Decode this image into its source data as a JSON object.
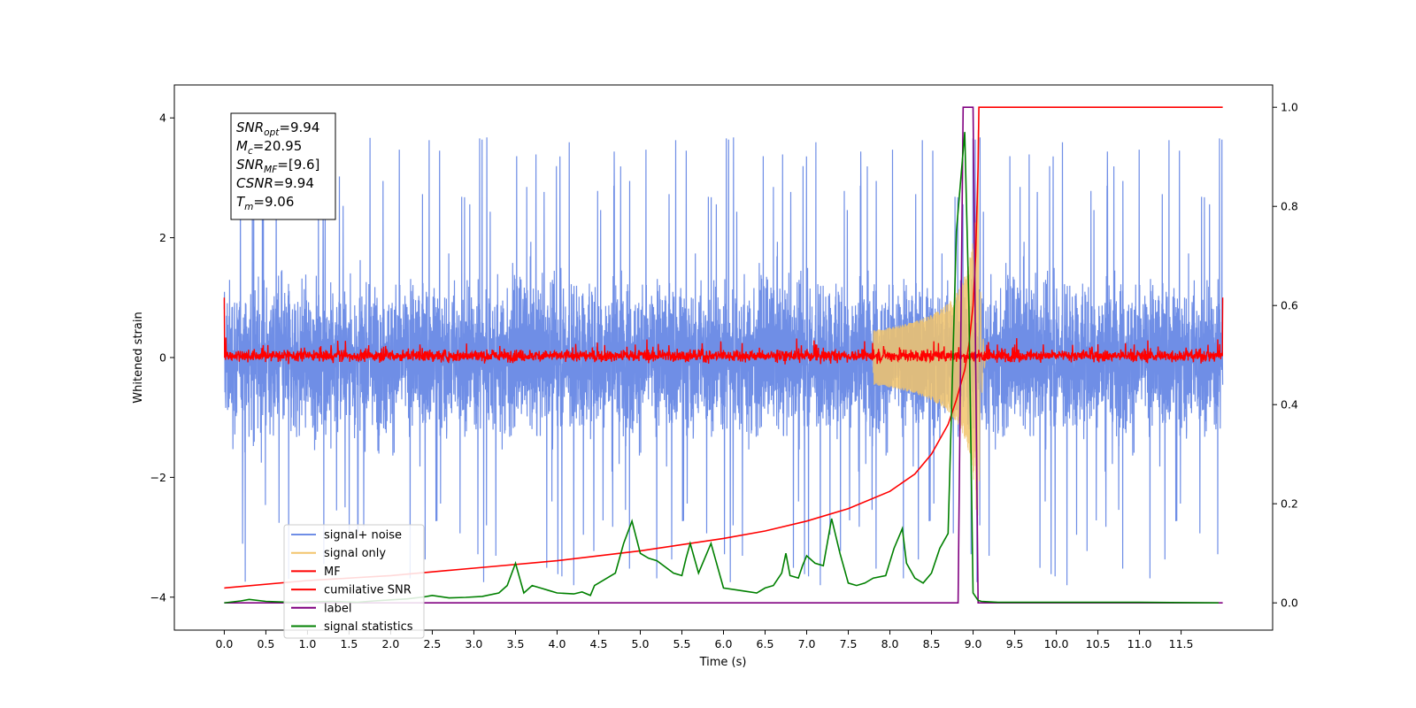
{
  "chart_data": {
    "type": "line",
    "xlabel": "Time (s)",
    "ylabel": "Whitened strain",
    "xlim": [
      -0.6,
      12.6
    ],
    "ylim_left": [
      -4.55,
      4.55
    ],
    "ylim_right": [
      -0.055,
      1.045
    ],
    "x_ticks": [
      0.0,
      0.5,
      1.0,
      1.5,
      2.0,
      2.5,
      3.0,
      3.5,
      4.0,
      4.5,
      5.0,
      5.5,
      6.0,
      6.5,
      7.0,
      7.5,
      8.0,
      8.5,
      9.0,
      9.5,
      10.0,
      10.5,
      11.0,
      11.5
    ],
    "x_tick_labels": [
      "0.0",
      "0.5",
      "1.0",
      "1.5",
      "2.0",
      "2.5",
      "3.0",
      "3.5",
      "4.0",
      "4.5",
      "5.0",
      "5.5",
      "6.0",
      "6.5",
      "7.0",
      "7.5",
      "8.0",
      "8.5",
      "9.0",
      "9.5",
      "10.0",
      "10.5",
      "11.0",
      "11.5"
    ],
    "y_left_ticks": [
      4,
      2,
      0,
      -2,
      -4
    ],
    "y_left_tick_labels": [
      "4",
      "2",
      "0",
      "−2",
      "−4"
    ],
    "y_right_ticks": [
      1.0,
      0.8,
      0.6,
      0.4,
      0.2,
      0.0
    ],
    "y_right_tick_labels": [
      "1.0",
      "0.8",
      "0.6",
      "0.4",
      "0.2",
      "0.0"
    ],
    "grid": false,
    "legend_placement": "lower-left",
    "annotation": {
      "lines": [
        {
          "var": "SNR",
          "sub": "opt",
          "value": "=9.94"
        },
        {
          "var": "M",
          "sub": "c",
          "value": "=20.95"
        },
        {
          "var": "SNR",
          "sub": "MF",
          "value": "=[9.6]"
        },
        {
          "var": "CSNR",
          "sub": "",
          "value": "=9.94"
        },
        {
          "var": "T",
          "sub": "m",
          "value": "=9.06"
        }
      ]
    },
    "series": [
      {
        "name": "signal+ noise",
        "axis": "left",
        "color": "#6f8ee6",
        "kind": "noise",
        "noise_band": [
          -2.2,
          2.2
        ],
        "spike_range": [
          -3.9,
          4.15
        ],
        "x_range": [
          0.0,
          12.0
        ]
      },
      {
        "name": "signal only",
        "axis": "left",
        "color": "#f2c46b",
        "kind": "chirp",
        "merger_time": 9.06,
        "peak_amplitude": 3.8
      },
      {
        "name": "MF",
        "axis": "left",
        "color": "#ff0000",
        "kind": "noise",
        "noise_band": [
          -0.15,
          0.2
        ],
        "edge_value": 1.0,
        "x_range": [
          0.0,
          12.0
        ]
      },
      {
        "name": "cumilative SNR",
        "axis": "right",
        "color": "#ff0000",
        "x": [
          0.0,
          1.0,
          2.0,
          3.0,
          4.0,
          5.0,
          6.0,
          6.5,
          7.0,
          7.5,
          8.0,
          8.3,
          8.5,
          8.7,
          8.8,
          8.9,
          8.95,
          9.0,
          9.03,
          9.06,
          9.07,
          12.0
        ],
        "y": [
          0.03,
          0.045,
          0.055,
          0.07,
          0.085,
          0.105,
          0.13,
          0.145,
          0.165,
          0.19,
          0.225,
          0.26,
          0.3,
          0.36,
          0.41,
          0.47,
          0.52,
          0.6,
          0.7,
          0.88,
          1.0,
          1.0
        ]
      },
      {
        "name": "label",
        "axis": "right",
        "color": "#800080",
        "x": [
          0.0,
          8.82,
          8.88,
          9.0,
          9.06,
          12.0
        ],
        "y": [
          0.0,
          0.0,
          1.0,
          1.0,
          0.0,
          0.0
        ]
      },
      {
        "name": "signal statistics",
        "axis": "right",
        "color": "#008000",
        "x": [
          0.0,
          0.2,
          0.3,
          0.5,
          0.8,
          1.0,
          1.3,
          1.6,
          1.8,
          2.0,
          2.2,
          2.4,
          2.5,
          2.7,
          2.9,
          3.1,
          3.3,
          3.4,
          3.5,
          3.55,
          3.6,
          3.7,
          3.8,
          3.9,
          4.0,
          4.2,
          4.3,
          4.4,
          4.45,
          4.5,
          4.6,
          4.7,
          4.8,
          4.9,
          5.0,
          5.1,
          5.2,
          5.4,
          5.5,
          5.55,
          5.6,
          5.7,
          5.85,
          6.0,
          6.2,
          6.4,
          6.5,
          6.6,
          6.7,
          6.75,
          6.8,
          6.9,
          6.95,
          7.0,
          7.1,
          7.2,
          7.3,
          7.4,
          7.5,
          7.6,
          7.7,
          7.8,
          7.95,
          8.05,
          8.15,
          8.2,
          8.3,
          8.4,
          8.5,
          8.6,
          8.7,
          8.8,
          8.9,
          8.95,
          9.0,
          9.06,
          9.1,
          9.2,
          9.3,
          10.0,
          11.0,
          11.95
        ],
        "y": [
          0.0,
          0.004,
          0.007,
          0.003,
          0.001,
          0.002,
          0.003,
          0.001,
          0.004,
          0.006,
          0.008,
          0.012,
          0.015,
          0.01,
          0.011,
          0.013,
          0.02,
          0.035,
          0.08,
          0.05,
          0.02,
          0.035,
          0.03,
          0.025,
          0.02,
          0.018,
          0.022,
          0.015,
          0.035,
          0.04,
          0.05,
          0.06,
          0.12,
          0.165,
          0.1,
          0.09,
          0.085,
          0.06,
          0.055,
          0.09,
          0.12,
          0.06,
          0.12,
          0.03,
          0.025,
          0.02,
          0.03,
          0.035,
          0.06,
          0.1,
          0.055,
          0.05,
          0.075,
          0.095,
          0.08,
          0.075,
          0.17,
          0.1,
          0.04,
          0.035,
          0.04,
          0.05,
          0.055,
          0.11,
          0.15,
          0.08,
          0.05,
          0.04,
          0.06,
          0.11,
          0.14,
          0.75,
          0.95,
          0.6,
          0.02,
          0.005,
          0.003,
          0.002,
          0.001,
          0.001,
          0.001,
          0.0
        ]
      }
    ]
  }
}
